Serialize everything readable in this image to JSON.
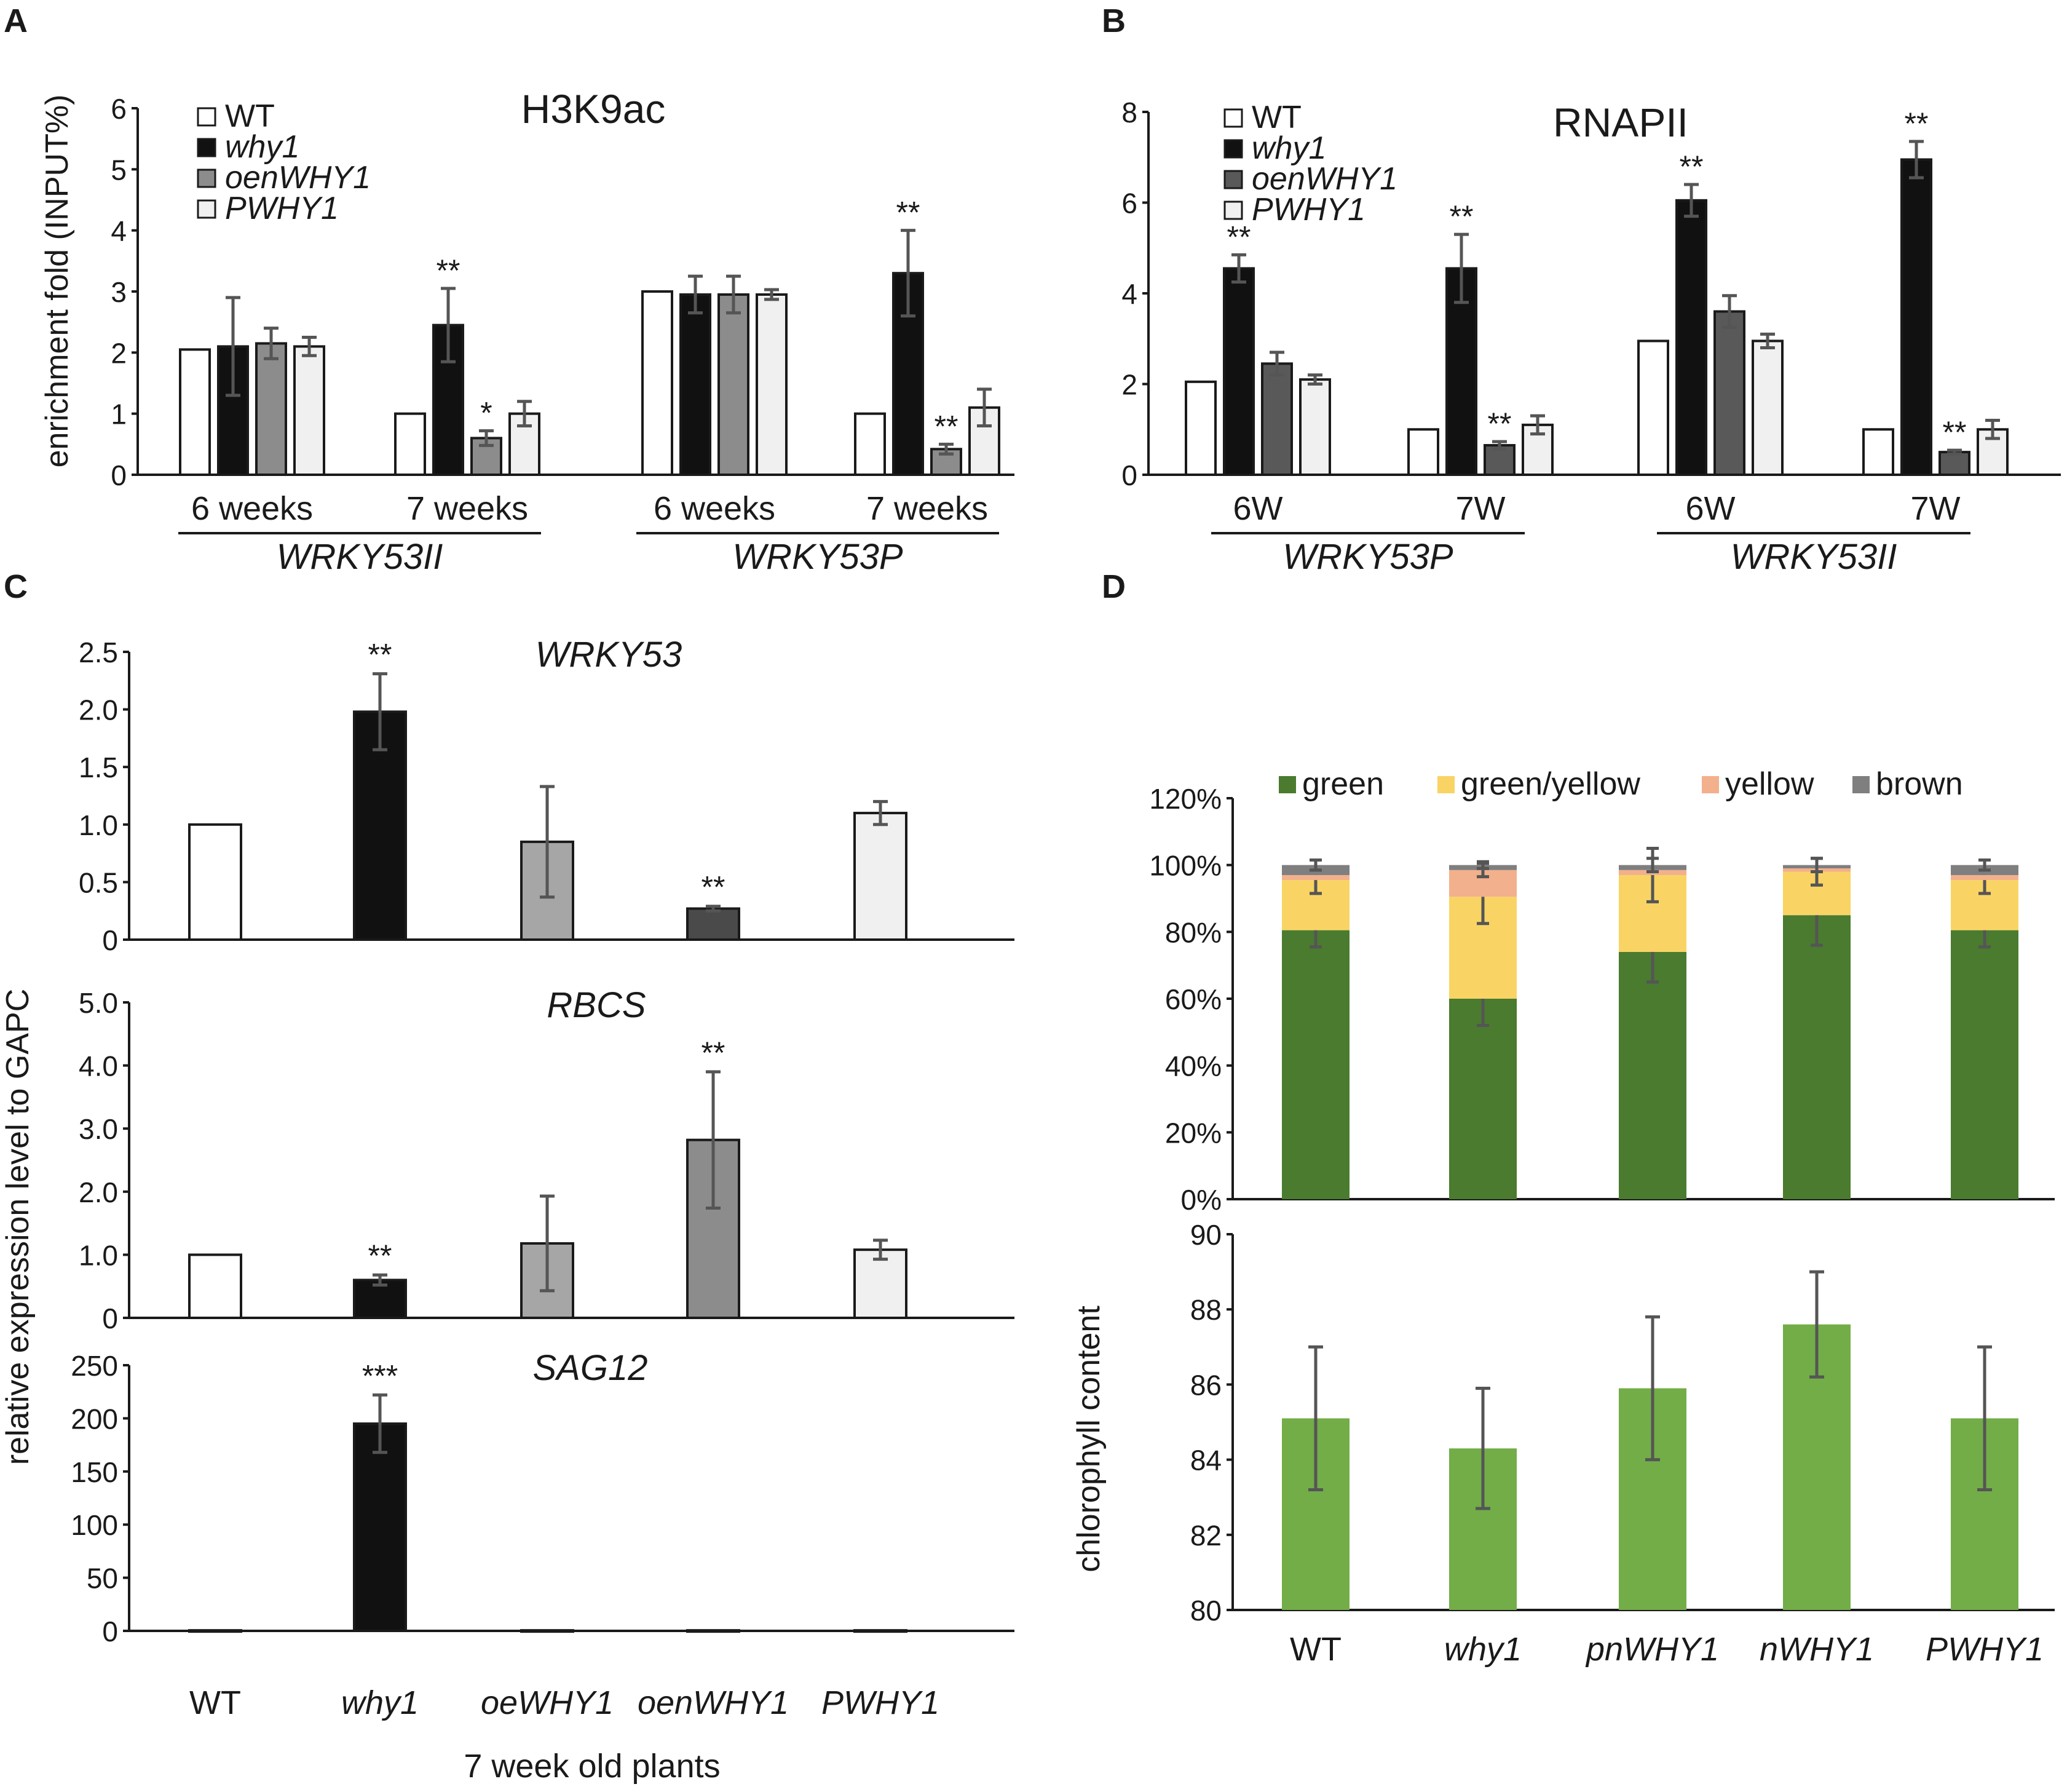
{
  "colors": {
    "WT": "#ffffff",
    "why1": "#111111",
    "oeWHY1": "#a6a6a6",
    "oenWHY1_A": "#8c8c8c",
    "oenWHY1_B": "#595959",
    "oenWHY1_C": "#4a4a4a",
    "PWHY1": "#f0f0f0",
    "green": "#4a7b2f",
    "green_yellow": "#f9d464",
    "yellow": "#f3b08c",
    "brown": "#7f7f7f",
    "chlorophyll": "#72ad47"
  },
  "chart_data": [
    {
      "id": "A",
      "panel_label": "A",
      "type": "bar",
      "title": "H3K9ac",
      "ylabel": "enrichment fold (INPUT%)",
      "ylim": [
        0,
        6
      ],
      "yticks": [
        "0",
        "1",
        "2",
        "3",
        "4",
        "5",
        "6"
      ],
      "legend": [
        "WT",
        "why1",
        "oenWHY1",
        "PWHY1"
      ],
      "categories": [
        "6 weeks",
        "7 weeks",
        "6 weeks",
        "7 weeks"
      ],
      "groups": [
        "WRKY53II",
        "WRKY53P"
      ],
      "series": [
        {
          "name": "WT",
          "values": [
            2.05,
            1.0,
            3.0,
            1.0
          ],
          "errors": [
            0,
            0,
            0,
            0
          ],
          "stars": [
            "",
            "",
            "",
            ""
          ]
        },
        {
          "name": "why1",
          "values": [
            2.1,
            2.45,
            2.95,
            3.3
          ],
          "errors": [
            0.8,
            0.6,
            0.3,
            0.7
          ],
          "stars": [
            "",
            "**",
            "",
            "**"
          ]
        },
        {
          "name": "oenWHY1",
          "values": [
            2.15,
            0.6,
            2.95,
            0.42
          ],
          "errors": [
            0.25,
            0.12,
            0.3,
            0.08
          ],
          "stars": [
            "",
            "*",
            "",
            "**"
          ]
        },
        {
          "name": "PWHY1",
          "values": [
            2.1,
            1.0,
            2.95,
            1.1
          ],
          "errors": [
            0.15,
            0.2,
            0.08,
            0.3
          ],
          "stars": [
            "",
            "",
            "",
            ""
          ]
        }
      ]
    },
    {
      "id": "B",
      "panel_label": "B",
      "type": "bar",
      "title": "RNAPII",
      "ylabel": "",
      "ylim": [
        0,
        8
      ],
      "yticks": [
        "0",
        "2",
        "4",
        "6",
        "8"
      ],
      "legend": [
        "WT",
        "why1",
        "oenWHY1",
        "PWHY1"
      ],
      "categories": [
        "6W",
        "7W",
        "6W",
        "7W"
      ],
      "groups": [
        "WRKY53P",
        "WRKY53II"
      ],
      "series": [
        {
          "name": "WT",
          "values": [
            2.05,
            1.0,
            2.95,
            1.0
          ],
          "errors": [
            0,
            0,
            0,
            0
          ],
          "stars": [
            "",
            "",
            "",
            ""
          ]
        },
        {
          "name": "why1",
          "values": [
            4.55,
            4.55,
            6.05,
            6.95
          ],
          "errors": [
            0.3,
            0.75,
            0.35,
            0.4
          ],
          "stars": [
            "**",
            "**",
            "**",
            "**"
          ]
        },
        {
          "name": "oenWHY1",
          "values": [
            2.45,
            0.65,
            3.6,
            0.5
          ],
          "errors": [
            0.25,
            0.08,
            0.35,
            0.04
          ],
          "stars": [
            "",
            "**",
            "",
            "**"
          ]
        },
        {
          "name": "PWHY1",
          "values": [
            2.1,
            1.1,
            2.95,
            1.0
          ],
          "errors": [
            0.1,
            0.2,
            0.15,
            0.2
          ],
          "stars": [
            "",
            "",
            "",
            ""
          ]
        }
      ]
    },
    {
      "id": "C",
      "panel_label": "C",
      "type": "bar",
      "ylabel": "relative expression level to GAPC",
      "xlabel": "7 week old plants",
      "categories": [
        "WT",
        "why1",
        "oeWHY1",
        "oenWHY1",
        "PWHY1"
      ],
      "subplots": [
        {
          "title": "WRKY53",
          "ylim": [
            0,
            2.5
          ],
          "yticks": [
            "0",
            "0.5",
            "1.0",
            "1.5",
            "2.0",
            "2.5"
          ],
          "values": [
            1.0,
            1.98,
            0.85,
            0.27,
            1.1
          ],
          "errors": [
            0,
            0.33,
            0.48,
            0.02,
            0.1
          ],
          "stars": [
            "",
            "**",
            "",
            "**",
            ""
          ]
        },
        {
          "title": "RBCS",
          "ylim": [
            0,
            5.0
          ],
          "yticks": [
            "0",
            "1.0",
            "2.0",
            "3.0",
            "4.0",
            "5.0"
          ],
          "values": [
            1.0,
            0.6,
            1.18,
            2.82,
            1.08
          ],
          "errors": [
            0,
            0.08,
            0.75,
            1.08,
            0.15
          ],
          "stars": [
            "",
            "**",
            "",
            "**",
            ""
          ]
        },
        {
          "title": "SAG12",
          "ylim": [
            0,
            250
          ],
          "yticks": [
            "0",
            "50",
            "100",
            "150",
            "200",
            "250"
          ],
          "values": [
            0.5,
            195,
            0.5,
            0.5,
            0.5
          ],
          "errors": [
            0,
            27,
            0,
            0,
            0
          ],
          "stars": [
            "",
            "***",
            "",
            "",
            ""
          ]
        }
      ]
    },
    {
      "id": "D",
      "panel_label": "D",
      "type": "bar",
      "categories": [
        "WT",
        "why1",
        "pnWHY1",
        "nWHY1",
        "PWHY1"
      ],
      "stacked": {
        "legend": [
          "green",
          "green/yellow",
          "yellow",
          "brown"
        ],
        "ylim": [
          0,
          120
        ],
        "yticks": [
          "0%",
          "20%",
          "40%",
          "60%",
          "80%",
          "100%",
          "120%"
        ],
        "series": [
          {
            "name": "green",
            "values": [
              80.5,
              60,
              74,
              85,
              80.5
            ],
            "errors": [
              5,
              8,
              9,
              9,
              5
            ]
          },
          {
            "name": "green/yellow",
            "values": [
              15,
              30.5,
              23,
              13,
              15
            ],
            "errors": [
              4,
              8,
              8,
              4,
              4
            ]
          },
          {
            "name": "yellow",
            "values": [
              1.5,
              8,
              1.5,
              1,
              1.5
            ],
            "errors": [
              0,
              2,
              0,
              0,
              0
            ]
          },
          {
            "name": "brown",
            "values": [
              3,
              1.5,
              1.5,
              1,
              3
            ],
            "errors": [
              1.5,
              1,
              2,
              2,
              1.5
            ]
          }
        ]
      },
      "chlorophyll": {
        "ylabel": "chlorophyll content",
        "ylim": [
          80,
          90
        ],
        "yticks": [
          "80",
          "82",
          "84",
          "86",
          "88",
          "90"
        ],
        "values": [
          85.1,
          84.3,
          85.9,
          87.6,
          85.1
        ],
        "errors": [
          1.9,
          1.6,
          1.9,
          1.4,
          1.9
        ]
      }
    }
  ]
}
